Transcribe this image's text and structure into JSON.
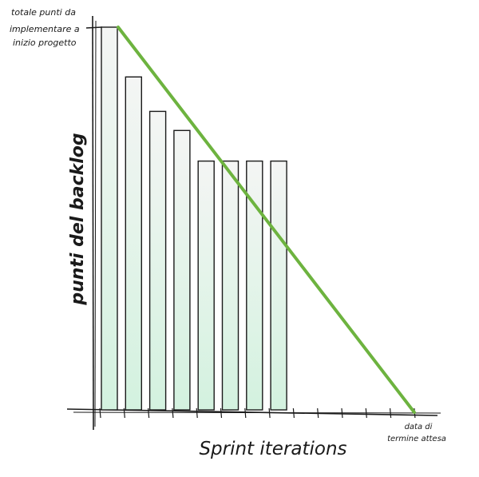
{
  "chart_data": {
    "type": "bar",
    "title": "",
    "xlabel": "Sprint iterations",
    "ylabel": "punti del backlog",
    "categories": [
      "",
      "",
      "",
      "",
      "",
      "",
      "",
      ""
    ],
    "values": [
      100,
      87,
      78,
      73,
      65,
      65,
      65,
      65
    ],
    "ylim": [
      0,
      100
    ],
    "x_slots": 14,
    "ideal_line": {
      "start": {
        "slot": 0,
        "value": 100
      },
      "end": {
        "slot": 13,
        "value": 0
      },
      "color": "#6db33f"
    },
    "annotations": {
      "start": [
        "totale punti da",
        "implementare a",
        "inizio progetto"
      ],
      "end": [
        "data di",
        "termine attesa"
      ]
    },
    "grid": false,
    "legend": "none",
    "bar_fill_top": "#f4f5f4",
    "bar_fill_bottom": "#d3f2df",
    "axis_color": "#1a1a1a"
  }
}
